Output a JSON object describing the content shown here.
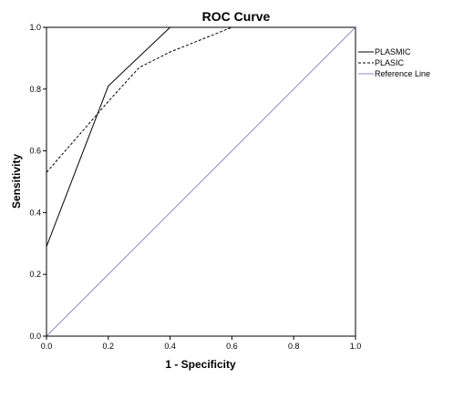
{
  "chart_data": {
    "type": "line",
    "title": "ROC Curve",
    "xlabel": "1 - Specificity",
    "ylabel": "Sensitivity",
    "xlim": [
      0,
      1
    ],
    "ylim": [
      0,
      1
    ],
    "xticks": [
      "0.0",
      "0.2",
      "0.4",
      "0.6",
      "0.8",
      "1.0"
    ],
    "yticks": [
      "0.0",
      "0.2",
      "0.4",
      "0.6",
      "0.8",
      "1.0"
    ],
    "grid": false,
    "legend_position": "top-right",
    "series": [
      {
        "name": "PLASMIC",
        "style": "solid",
        "color": "#000000",
        "x": [
          0,
          0,
          0,
          0.2,
          0.4,
          1.0
        ],
        "y": [
          0,
          0.1,
          0.29,
          0.81,
          1.0,
          1.0
        ]
      },
      {
        "name": "PLASIC",
        "style": "dashed",
        "color": "#000000",
        "x": [
          0,
          0,
          0,
          0.2,
          0.3,
          0.4,
          0.6,
          1.0
        ],
        "y": [
          0,
          0.29,
          0.53,
          0.76,
          0.87,
          0.92,
          1.0,
          1.0
        ]
      },
      {
        "name": "Reference Line",
        "style": "solid",
        "color": "#8b8fc4",
        "x": [
          0,
          1
        ],
        "y": [
          0,
          1
        ]
      }
    ]
  }
}
